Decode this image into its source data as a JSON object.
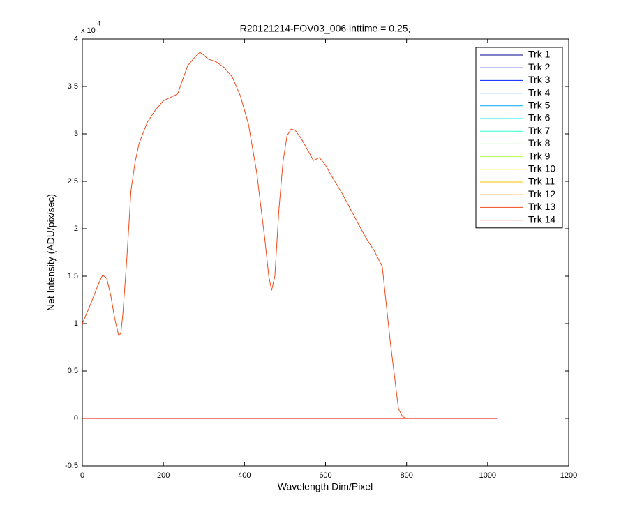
{
  "chart_data": {
    "type": "line",
    "title": "R20121214-FOV03_006 inttime = 0.25,",
    "x_label": "Wavelength Dim/Pixel",
    "y_label": "Net Intensity (ADU/pix/sec)",
    "y_multiplier": {
      "base": "x 10",
      "exponent": "4"
    },
    "xlim": [
      0,
      1200
    ],
    "xticks": [
      0,
      200,
      400,
      600,
      800,
      1000,
      1200
    ],
    "ylim": [
      -0.5,
      4
    ],
    "yticks": [
      -0.5,
      0,
      0.5,
      1,
      1.5,
      2,
      2.5,
      3,
      3.5,
      4
    ],
    "legend_position": "upper-right",
    "series": [
      {
        "name": "Trk 1",
        "color": "#00008F",
        "x": [
          0,
          1023
        ],
        "values": [
          0,
          0
        ]
      },
      {
        "name": "Trk 2",
        "color": "#0000D5",
        "x": [
          0,
          1023
        ],
        "values": [
          0,
          0
        ]
      },
      {
        "name": "Trk 3",
        "color": "#001FFF",
        "x": [
          0,
          1023
        ],
        "values": [
          0,
          0
        ]
      },
      {
        "name": "Trk 4",
        "color": "#0063FF",
        "x": [
          0,
          1023
        ],
        "values": [
          0,
          0
        ]
      },
      {
        "name": "Trk 5",
        "color": "#00A7FF",
        "x": [
          0,
          1023
        ],
        "values": [
          0,
          0
        ]
      },
      {
        "name": "Trk 6",
        "color": "#00EBFF",
        "x": [
          0,
          1023
        ],
        "values": [
          0,
          0
        ]
      },
      {
        "name": "Trk 7",
        "color": "#2FFFCF",
        "x": [
          0,
          1023
        ],
        "values": [
          0,
          0
        ]
      },
      {
        "name": "Trk 8",
        "color": "#73FF8B",
        "x": [
          0,
          1023
        ],
        "values": [
          0,
          0
        ]
      },
      {
        "name": "Trk 9",
        "color": "#B7FF47",
        "x": [
          0,
          1023
        ],
        "values": [
          0,
          0
        ]
      },
      {
        "name": "Trk 10",
        "color": "#FBFF03",
        "x": [
          0,
          1023
        ],
        "values": [
          0,
          0
        ]
      },
      {
        "name": "Trk 11",
        "color": "#FFBF00",
        "x": [
          0,
          1023
        ],
        "values": [
          0,
          0
        ]
      },
      {
        "name": "Trk 12",
        "color": "#FF7B00",
        "x": [
          0,
          1023
        ],
        "values": [
          0,
          0
        ]
      },
      {
        "name": "Trk 13",
        "color": "#F04A1A",
        "x": [
          0,
          20,
          40,
          50,
          60,
          70,
          80,
          90,
          95,
          100,
          110,
          120,
          130,
          140,
          160,
          180,
          200,
          220,
          235,
          250,
          260,
          280,
          290,
          300,
          310,
          330,
          350,
          370,
          390,
          410,
          430,
          450,
          460,
          467,
          475,
          485,
          495,
          505,
          515,
          525,
          540,
          560,
          570,
          585,
          600,
          620,
          640,
          660,
          680,
          700,
          720,
          740,
          750,
          760,
          770,
          780,
          790,
          800,
          900,
          1023
        ],
        "values": [
          1.0,
          1.2,
          1.42,
          1.51,
          1.48,
          1.3,
          1.05,
          0.87,
          0.9,
          1.1,
          1.7,
          2.4,
          2.7,
          2.9,
          3.12,
          3.25,
          3.35,
          3.39,
          3.42,
          3.6,
          3.72,
          3.82,
          3.86,
          3.83,
          3.79,
          3.76,
          3.7,
          3.6,
          3.4,
          3.1,
          2.6,
          1.9,
          1.5,
          1.35,
          1.5,
          2.2,
          2.7,
          2.98,
          3.05,
          3.04,
          2.95,
          2.8,
          2.72,
          2.75,
          2.67,
          2.52,
          2.38,
          2.22,
          2.06,
          1.9,
          1.77,
          1.6,
          1.2,
          0.8,
          0.45,
          0.1,
          0.02,
          0,
          0,
          0
        ]
      },
      {
        "name": "Trk 14",
        "color": "#E00000",
        "x": [
          0,
          1023
        ],
        "values": [
          0,
          0
        ]
      }
    ]
  }
}
